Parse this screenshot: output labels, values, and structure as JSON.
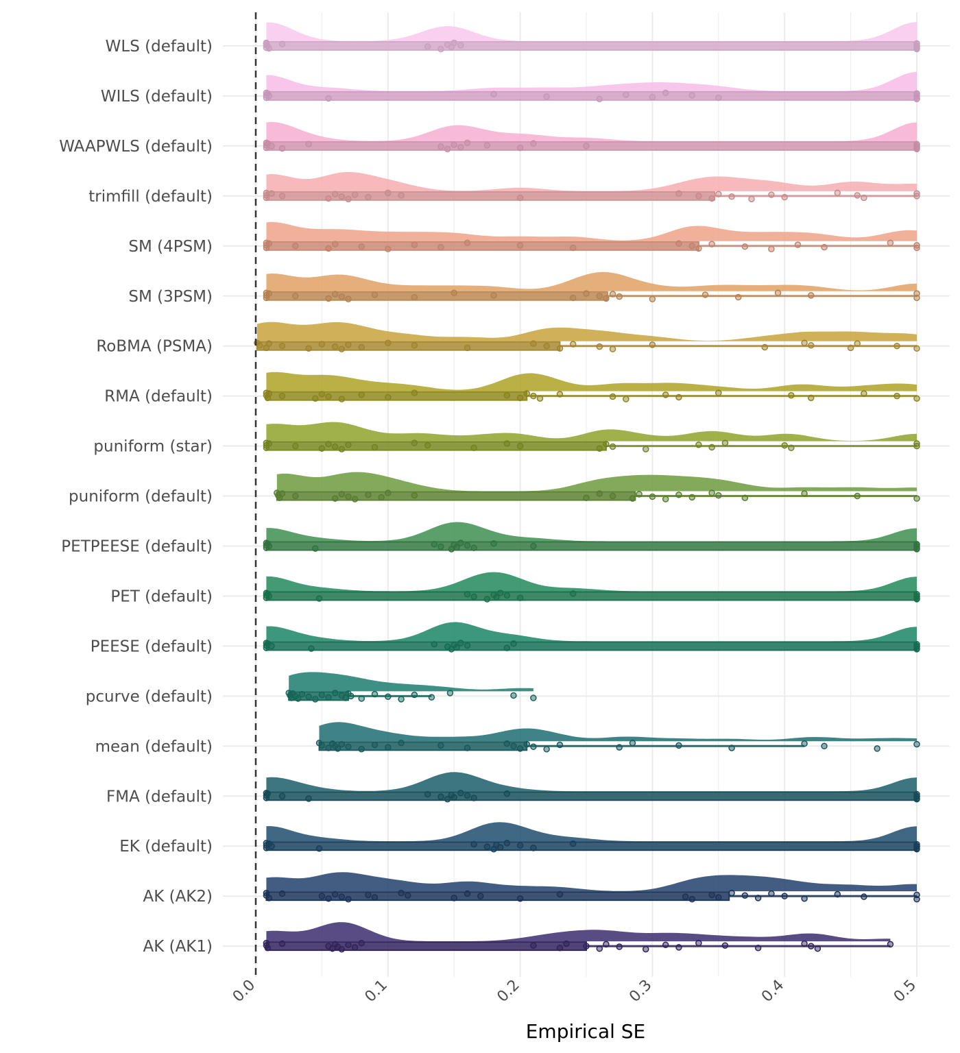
{
  "chart_data": {
    "type": "raincloud",
    "title": "",
    "xlabel": "Empirical SE",
    "ylabel": "",
    "xlim": [
      0,
      0.5
    ],
    "x_ticks": [
      "0.0",
      "0.1",
      "0.2",
      "0.3",
      "0.4",
      "0.5"
    ],
    "x_tick_values": [
      0,
      0.1,
      0.2,
      0.3,
      0.4,
      0.5
    ],
    "reference_line": 0,
    "grid": true,
    "series": [
      {
        "name": "WLS (default)",
        "color": "#F9C8EE",
        "q1": 0.008,
        "q3": 0.5,
        "max": 0.5,
        "points": [
          0.008,
          0.008,
          0.008,
          0.008,
          0.009,
          0.01,
          0.02,
          0.13,
          0.14,
          0.145,
          0.148,
          0.15,
          0.155,
          0.5,
          0.5,
          0.5,
          0.5,
          0.5,
          0.5,
          0.5
        ]
      },
      {
        "name": "WILS (default)",
        "color": "#F7BCE6",
        "q1": 0.008,
        "q3": 0.5,
        "max": 0.5,
        "points": [
          0.008,
          0.008,
          0.008,
          0.009,
          0.01,
          0.055,
          0.18,
          0.22,
          0.26,
          0.28,
          0.3,
          0.31,
          0.33,
          0.35,
          0.5,
          0.5,
          0.5,
          0.5,
          0.5,
          0.5
        ]
      },
      {
        "name": "WAAPWLS (default)",
        "color": "#F7AFD0",
        "q1": 0.008,
        "q3": 0.5,
        "max": 0.5,
        "points": [
          0.008,
          0.008,
          0.008,
          0.009,
          0.012,
          0.02,
          0.04,
          0.14,
          0.145,
          0.15,
          0.155,
          0.16,
          0.175,
          0.2,
          0.21,
          0.25,
          0.5,
          0.5,
          0.5,
          0.5,
          0.5,
          0.5
        ]
      },
      {
        "name": "trimfill (default)",
        "color": "#F6ADAF",
        "q1": 0.008,
        "q3": 0.347,
        "max": 0.5,
        "points": [
          0.008,
          0.008,
          0.008,
          0.012,
          0.02,
          0.055,
          0.06,
          0.065,
          0.07,
          0.075,
          0.085,
          0.1,
          0.11,
          0.2,
          0.32,
          0.335,
          0.345,
          0.35,
          0.36,
          0.375,
          0.39,
          0.4,
          0.44,
          0.455,
          0.46,
          0.5,
          0.5
        ]
      },
      {
        "name": "SM (4PSM)",
        "color": "#EEA288",
        "q1": 0.008,
        "q3": 0.335,
        "max": 0.5,
        "points": [
          0.008,
          0.008,
          0.008,
          0.01,
          0.03,
          0.055,
          0.06,
          0.08,
          0.1,
          0.12,
          0.14,
          0.16,
          0.2,
          0.24,
          0.32,
          0.33,
          0.335,
          0.345,
          0.37,
          0.39,
          0.41,
          0.43,
          0.48,
          0.5,
          0.5
        ]
      },
      {
        "name": "SM (3PSM)",
        "color": "#DFA164",
        "q1": 0.008,
        "q3": 0.266,
        "max": 0.5,
        "points": [
          0.008,
          0.008,
          0.008,
          0.01,
          0.03,
          0.055,
          0.06,
          0.065,
          0.07,
          0.09,
          0.12,
          0.15,
          0.18,
          0.24,
          0.25,
          0.26,
          0.265,
          0.27,
          0.275,
          0.3,
          0.34,
          0.365,
          0.395,
          0.42,
          0.5,
          0.5
        ]
      },
      {
        "name": "RoBMA (PSMA)",
        "color": "#C8A33C",
        "q1": 0.001,
        "q3": 0.23,
        "max": 0.5,
        "points": [
          0.001,
          0.003,
          0.008,
          0.01,
          0.02,
          0.04,
          0.05,
          0.06,
          0.065,
          0.07,
          0.08,
          0.1,
          0.12,
          0.16,
          0.21,
          0.22,
          0.23,
          0.24,
          0.26,
          0.27,
          0.3,
          0.385,
          0.415,
          0.42,
          0.45,
          0.455,
          0.485,
          0.5
        ]
      },
      {
        "name": "RMA (default)",
        "color": "#ADA226",
        "q1": 0.008,
        "q3": 0.205,
        "max": 0.5,
        "points": [
          0.008,
          0.008,
          0.009,
          0.01,
          0.02,
          0.045,
          0.05,
          0.055,
          0.065,
          0.08,
          0.1,
          0.12,
          0.19,
          0.2,
          0.205,
          0.21,
          0.215,
          0.23,
          0.27,
          0.28,
          0.31,
          0.32,
          0.35,
          0.405,
          0.42,
          0.46,
          0.485,
          0.5
        ]
      },
      {
        "name": "puniform (star)",
        "color": "#8FA22A",
        "q1": 0.008,
        "q3": 0.265,
        "max": 0.5,
        "points": [
          0.008,
          0.008,
          0.008,
          0.01,
          0.03,
          0.05,
          0.055,
          0.06,
          0.065,
          0.07,
          0.09,
          0.12,
          0.13,
          0.165,
          0.19,
          0.2,
          0.26,
          0.265,
          0.27,
          0.295,
          0.335,
          0.345,
          0.355,
          0.4,
          0.405,
          0.5,
          0.5
        ]
      },
      {
        "name": "puniform (default)",
        "color": "#6D9A3D",
        "q1": 0.016,
        "q3": 0.287,
        "max": 0.5,
        "points": [
          0.016,
          0.017,
          0.018,
          0.02,
          0.03,
          0.06,
          0.065,
          0.07,
          0.075,
          0.085,
          0.095,
          0.1,
          0.12,
          0.25,
          0.26,
          0.27,
          0.285,
          0.29,
          0.3,
          0.31,
          0.32,
          0.33,
          0.345,
          0.35,
          0.37,
          0.415,
          0.455,
          0.5
        ]
      },
      {
        "name": "PETPEESE (default)",
        "color": "#3E8E50",
        "q1": 0.008,
        "q3": 0.5,
        "max": 0.5,
        "points": [
          0.008,
          0.008,
          0.008,
          0.009,
          0.01,
          0.045,
          0.135,
          0.14,
          0.148,
          0.15,
          0.152,
          0.155,
          0.16,
          0.165,
          0.18,
          0.21,
          0.5,
          0.5,
          0.5,
          0.5,
          0.5
        ]
      },
      {
        "name": "PET (default)",
        "color": "#218A5B",
        "q1": 0.008,
        "q3": 0.5,
        "max": 0.5,
        "points": [
          0.008,
          0.008,
          0.008,
          0.009,
          0.01,
          0.048,
          0.16,
          0.165,
          0.175,
          0.18,
          0.182,
          0.185,
          0.19,
          0.2,
          0.24,
          0.5,
          0.5,
          0.5,
          0.5,
          0.5
        ]
      },
      {
        "name": "PEESE (default)",
        "color": "#1B8566",
        "q1": 0.008,
        "q3": 0.5,
        "max": 0.5,
        "points": [
          0.008,
          0.008,
          0.008,
          0.009,
          0.012,
          0.042,
          0.135,
          0.145,
          0.148,
          0.15,
          0.152,
          0.155,
          0.16,
          0.19,
          0.195,
          0.5,
          0.5,
          0.5,
          0.5,
          0.5
        ]
      },
      {
        "name": "pcurve (default)",
        "color": "#1C7D6E",
        "q1": 0.025,
        "q3": 0.07,
        "max": 0.133,
        "points": [
          0.025,
          0.026,
          0.027,
          0.028,
          0.03,
          0.032,
          0.035,
          0.04,
          0.045,
          0.05,
          0.055,
          0.06,
          0.065,
          0.068,
          0.07,
          0.072,
          0.08,
          0.09,
          0.1,
          0.11,
          0.12,
          0.133,
          0.147,
          0.195,
          0.21
        ]
      },
      {
        "name": "mean (default)",
        "color": "#1F6D72",
        "q1": 0.048,
        "q3": 0.205,
        "max": 0.415,
        "points": [
          0.048,
          0.05,
          0.055,
          0.058,
          0.06,
          0.062,
          0.065,
          0.07,
          0.08,
          0.09,
          0.1,
          0.11,
          0.14,
          0.16,
          0.19,
          0.195,
          0.2,
          0.205,
          0.21,
          0.22,
          0.23,
          0.275,
          0.285,
          0.32,
          0.36,
          0.415,
          0.43,
          0.47,
          0.5
        ]
      },
      {
        "name": "FMA (default)",
        "color": "#1B5E6B",
        "q1": 0.008,
        "q3": 0.5,
        "max": 0.5,
        "points": [
          0.008,
          0.008,
          0.008,
          0.009,
          0.02,
          0.04,
          0.13,
          0.14,
          0.145,
          0.148,
          0.15,
          0.155,
          0.16,
          0.165,
          0.19,
          0.5,
          0.5,
          0.5,
          0.5,
          0.5
        ]
      },
      {
        "name": "EK (default)",
        "color": "#1F4E6E",
        "q1": 0.008,
        "q3": 0.5,
        "max": 0.5,
        "points": [
          0.008,
          0.008,
          0.008,
          0.01,
          0.012,
          0.048,
          0.165,
          0.175,
          0.18,
          0.182,
          0.185,
          0.19,
          0.2,
          0.21,
          0.24,
          0.5,
          0.5,
          0.5,
          0.5,
          0.5
        ]
      },
      {
        "name": "AK (AK2)",
        "color": "#223F6C",
        "q1": 0.008,
        "q3": 0.358,
        "max": 0.5,
        "points": [
          0.008,
          0.008,
          0.01,
          0.02,
          0.05,
          0.055,
          0.06,
          0.065,
          0.07,
          0.085,
          0.09,
          0.11,
          0.115,
          0.15,
          0.16,
          0.17,
          0.2,
          0.23,
          0.325,
          0.33,
          0.345,
          0.35,
          0.36,
          0.37,
          0.38,
          0.39,
          0.4,
          0.415,
          0.44,
          0.46,
          0.5,
          0.5
        ]
      },
      {
        "name": "AK (AK1)",
        "color": "#3C2C6E",
        "q1": 0.008,
        "q3": 0.25,
        "max": 0.48,
        "points": [
          0.008,
          0.008,
          0.009,
          0.02,
          0.055,
          0.058,
          0.06,
          0.062,
          0.065,
          0.07,
          0.075,
          0.08,
          0.21,
          0.23,
          0.235,
          0.25,
          0.26,
          0.265,
          0.275,
          0.295,
          0.31,
          0.32,
          0.335,
          0.355,
          0.38,
          0.415,
          0.42,
          0.425,
          0.48
        ]
      }
    ]
  }
}
